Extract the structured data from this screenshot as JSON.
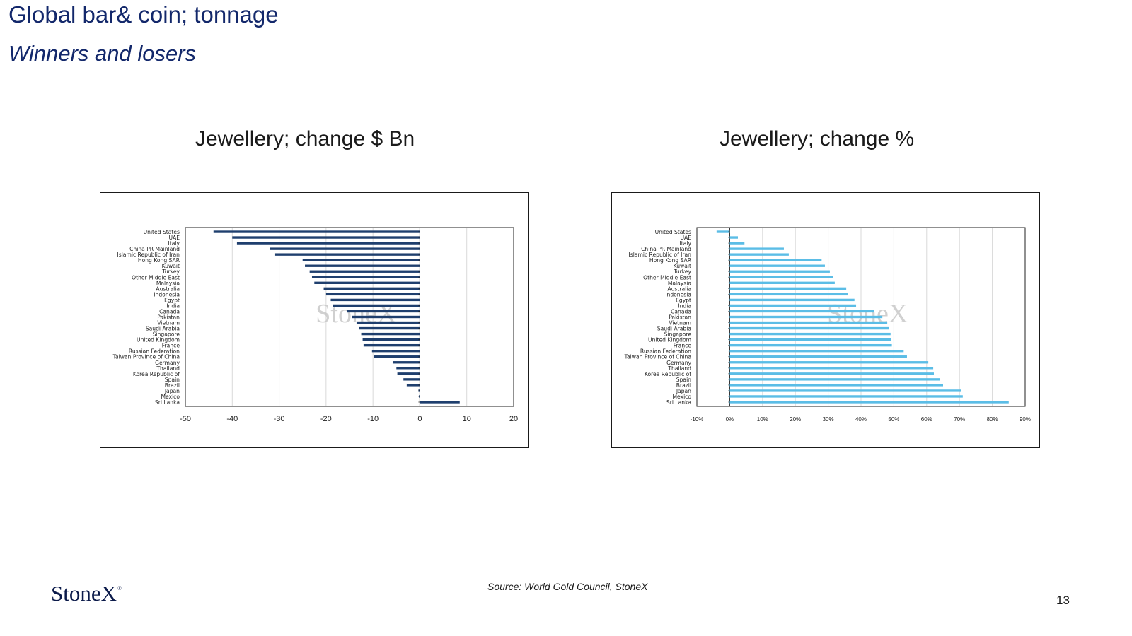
{
  "page": {
    "title": "Global bar& coin; tonnage",
    "subtitle": "Winners and losers",
    "source": "Source: World Gold Council, StoneX",
    "page_number": "13",
    "logo_text": "StoneX",
    "logo_mark": "®"
  },
  "colors": {
    "title": "#13286b",
    "bar_left": "#1f3f6e",
    "bar_right": "#5bbde6",
    "grid": "#d9d9d9",
    "watermark": "#c8c8c8"
  },
  "chart_data": [
    {
      "type": "bar",
      "orientation": "horizontal",
      "title": "Jewellery;  change $ Bn",
      "watermark": "StoneX",
      "categories": [
        "United States",
        "UAE",
        "Italy",
        "China PR Mainland",
        "Islamic Republic of Iran",
        "Hong Kong SAR",
        "Kuwait",
        "Turkey",
        "Other Middle East",
        "Malaysia",
        "Australia",
        "Indonesia",
        "Egypt",
        "India",
        "Canada",
        "Pakistan",
        "Vietnam",
        "Saudi Arabia",
        "Singapore",
        "United Kingdom",
        "France",
        "Russian Federation",
        "Taiwan Province of China",
        "Germany",
        "Thailand",
        "Korea Republic of",
        "Spain",
        "Brazil",
        "Japan",
        "Mexico",
        "Sri Lanka"
      ],
      "values": [
        -44,
        -40,
        -39,
        -32,
        -31,
        -25,
        -24.5,
        -23.5,
        -23,
        -22.5,
        -20.5,
        -20,
        -19,
        -18.5,
        -15.5,
        -14.5,
        -13.5,
        -13,
        -12.5,
        -12.2,
        -12,
        -10.2,
        -9.8,
        -5.8,
        -5,
        -4.8,
        -3.5,
        -2.8,
        -0.3,
        -0.2,
        8.5
      ],
      "xlim": [
        -50,
        20
      ],
      "xticks": [
        "-50",
        "-40",
        "-30",
        "-20",
        "-10",
        "0",
        "10",
        "20"
      ],
      "grid": true
    },
    {
      "type": "bar",
      "orientation": "horizontal",
      "title": "Jewellery;  change %",
      "watermark": "StoneX",
      "categories": [
        "United States",
        "UAE",
        "Italy",
        "China PR Mainland",
        "Islamic Republic of Iran",
        "Hong Kong SAR",
        "Kuwait",
        "Turkey",
        "Other Middle East",
        "Malaysia",
        "Australia",
        "Indonesia",
        "Egypt",
        "India",
        "Canada",
        "Pakistan",
        "Vietnam",
        "Saudi Arabia",
        "Singapore",
        "United Kingdom",
        "France",
        "Russian Federation",
        "Taiwan Province of China",
        "Germany",
        "Thailand",
        "Korea Republic of",
        "Spain",
        "Brazil",
        "Japan",
        "Mexico",
        "Sri Lanka"
      ],
      "values": [
        -4,
        2.5,
        4.5,
        16.5,
        18,
        28,
        29,
        30.5,
        31.5,
        32,
        35.5,
        36,
        38,
        38.5,
        44,
        46.5,
        48,
        48.5,
        49,
        49.2,
        49.4,
        53,
        54,
        60.5,
        62,
        62.2,
        64,
        65,
        70.5,
        71,
        85
      ],
      "xlim": [
        -10,
        90
      ],
      "xticks": [
        "-10%",
        "0%",
        "10%",
        "20%",
        "30%",
        "40%",
        "50%",
        "60%",
        "70%",
        "80%",
        "90%"
      ],
      "grid": true
    }
  ]
}
